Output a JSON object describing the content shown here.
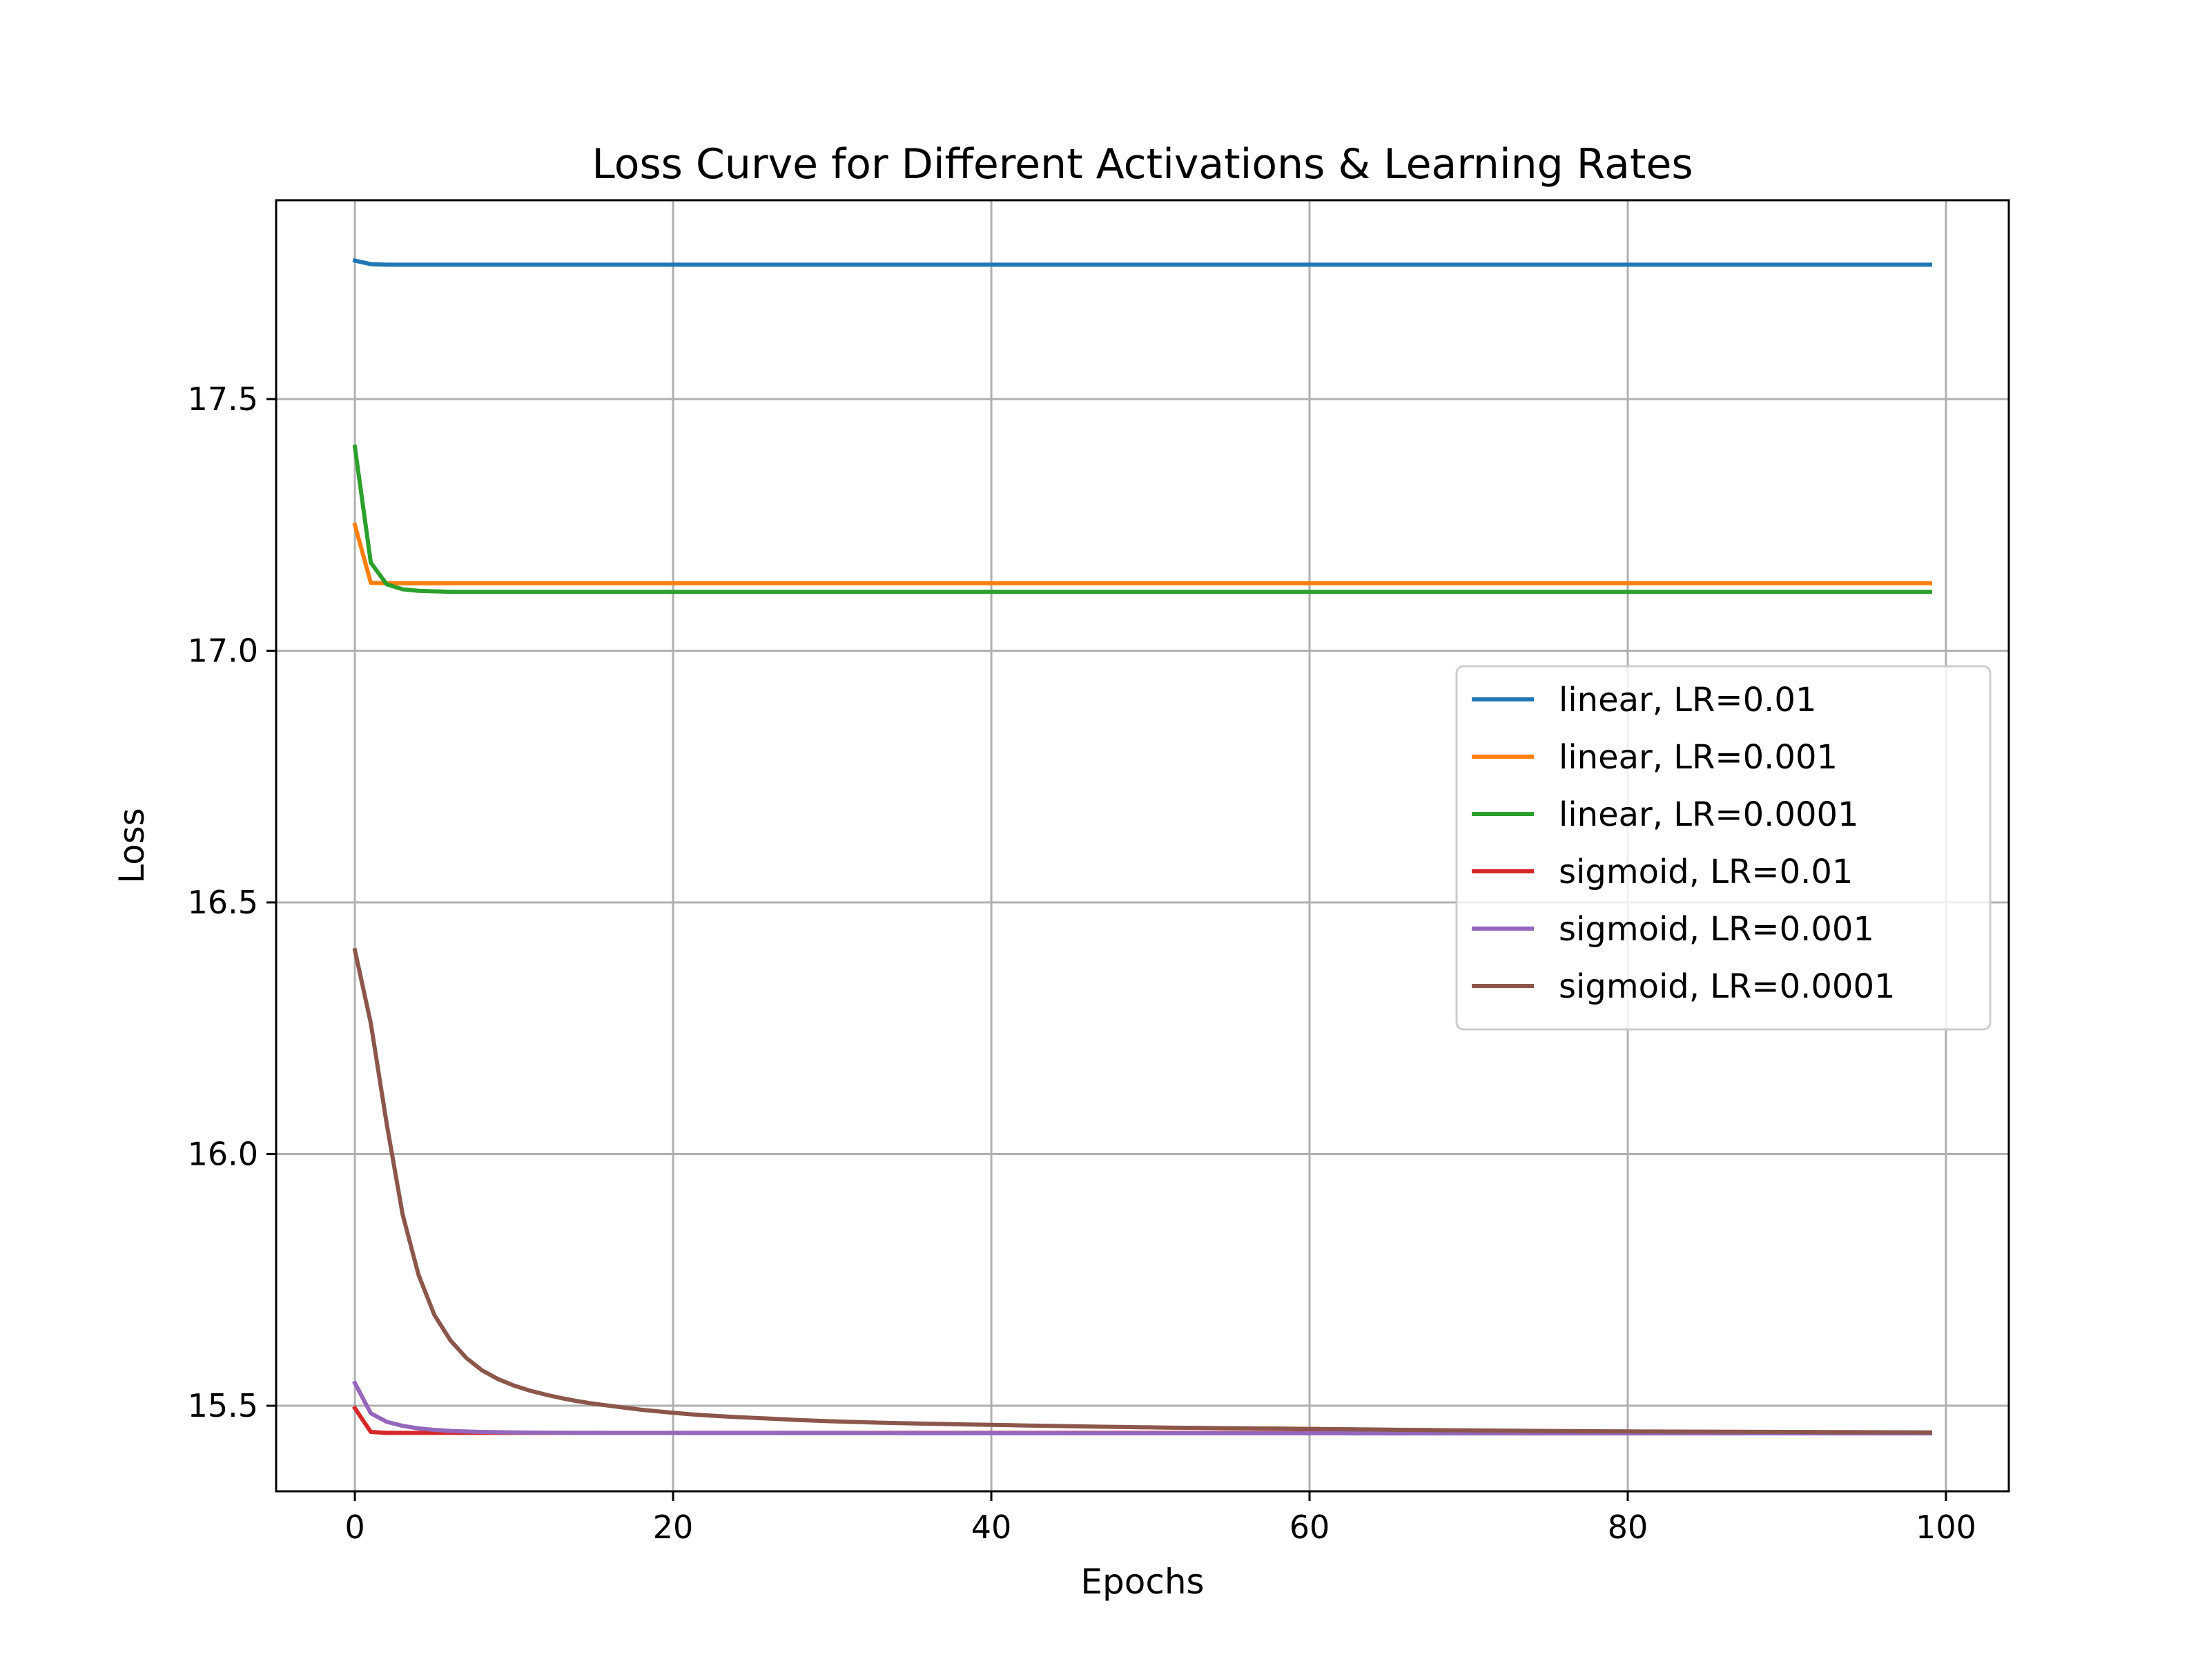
{
  "chart_data": {
    "type": "line",
    "title": "Loss Curve for Different Activations & Learning Rates",
    "xlabel": "Epochs",
    "ylabel": "Loss",
    "xlim": [
      -4.95,
      103.95
    ],
    "ylim": [
      15.33,
      17.895
    ],
    "xticks": [
      0,
      20,
      40,
      60,
      80,
      100
    ],
    "xtick_labels": [
      "0",
      "20",
      "40",
      "60",
      "80",
      "100"
    ],
    "yticks": [
      15.5,
      16.0,
      16.5,
      17.0,
      17.5
    ],
    "ytick_labels": [
      "15.5",
      "16.0",
      "16.5",
      "17.0",
      "17.5"
    ],
    "grid": true,
    "legend_position": "center right",
    "x_range": [
      0,
      99
    ],
    "series": [
      {
        "name": "linear, LR=0.01",
        "color": "#1f77b4",
        "points": [
          [
            0,
            17.775
          ],
          [
            1,
            17.768
          ],
          [
            2,
            17.767
          ],
          [
            99,
            17.767
          ]
        ]
      },
      {
        "name": "linear, LR=0.001",
        "color": "#ff7f0e",
        "points": [
          [
            0,
            17.25
          ],
          [
            1,
            17.135
          ],
          [
            2,
            17.134
          ],
          [
            99,
            17.134
          ]
        ]
      },
      {
        "name": "linear, LR=0.0001",
        "color": "#2ca02c",
        "points": [
          [
            0,
            17.405
          ],
          [
            1,
            17.175
          ],
          [
            2,
            17.132
          ],
          [
            3,
            17.122
          ],
          [
            4,
            17.119
          ],
          [
            5,
            17.118
          ],
          [
            6,
            17.117
          ],
          [
            99,
            17.117
          ]
        ]
      },
      {
        "name": "sigmoid, LR=0.01",
        "color": "#d62728",
        "points": [
          [
            0,
            15.495
          ],
          [
            1,
            15.448
          ],
          [
            2,
            15.446
          ],
          [
            99,
            15.446
          ]
        ]
      },
      {
        "name": "sigmoid, LR=0.001",
        "color": "#9467bd",
        "points": [
          [
            0,
            15.545
          ],
          [
            1,
            15.485
          ],
          [
            2,
            15.468
          ],
          [
            3,
            15.46
          ],
          [
            4,
            15.455
          ],
          [
            5,
            15.452
          ],
          [
            6,
            15.45
          ],
          [
            8,
            15.448
          ],
          [
            10,
            15.447
          ],
          [
            15,
            15.446
          ],
          [
            99,
            15.445
          ]
        ]
      },
      {
        "name": "sigmoid, LR=0.0001",
        "color": "#8c564b",
        "points": [
          [
            0,
            16.405
          ],
          [
            1,
            16.26
          ],
          [
            2,
            16.06
          ],
          [
            3,
            15.88
          ],
          [
            4,
            15.76
          ],
          [
            5,
            15.68
          ],
          [
            6,
            15.63
          ],
          [
            7,
            15.595
          ],
          [
            8,
            15.57
          ],
          [
            9,
            15.553
          ],
          [
            10,
            15.54
          ],
          [
            11,
            15.53
          ],
          [
            12,
            15.522
          ],
          [
            13,
            15.515
          ],
          [
            14,
            15.509
          ],
          [
            15,
            15.504
          ],
          [
            16,
            15.5
          ],
          [
            17,
            15.496
          ],
          [
            18,
            15.492
          ],
          [
            19,
            15.489
          ],
          [
            20,
            15.486
          ],
          [
            22,
            15.481
          ],
          [
            25,
            15.476
          ],
          [
            30,
            15.469
          ],
          [
            35,
            15.465
          ],
          [
            40,
            15.462
          ],
          [
            50,
            15.457
          ],
          [
            60,
            15.454
          ],
          [
            70,
            15.451
          ],
          [
            80,
            15.449
          ],
          [
            90,
            15.448
          ],
          [
            99,
            15.447
          ]
        ]
      }
    ]
  }
}
